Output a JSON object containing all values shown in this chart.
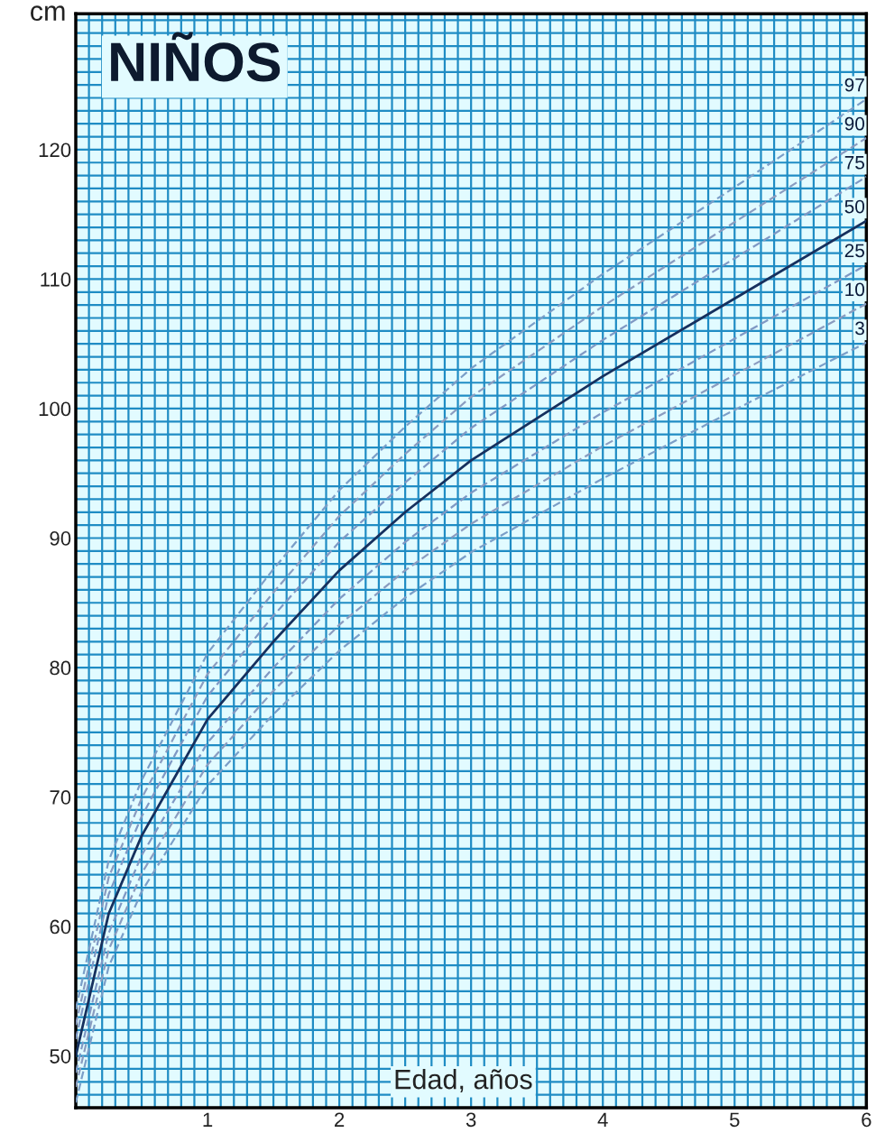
{
  "chart_data": {
    "type": "line",
    "title": "NIÑOS",
    "xlabel": "Edad, años",
    "ylabel": "cm",
    "x": [
      0,
      0.25,
      0.5,
      0.75,
      1,
      1.5,
      2,
      2.5,
      3,
      4,
      5,
      6
    ],
    "series": [
      {
        "name": "97",
        "color": "#7a9ec8",
        "line_style": "dashed",
        "values": [
          53.6,
          65.1,
          71.3,
          76.2,
          81.1,
          87.6,
          93.7,
          98.6,
          103.1,
          110.4,
          117.1,
          123.9
        ]
      },
      {
        "name": "90",
        "color": "#8a9cc0",
        "line_style": "dashed",
        "values": [
          52.4,
          63.8,
          69.9,
          74.7,
          79.5,
          85.8,
          91.7,
          96.5,
          100.9,
          107.9,
          114.4,
          120.9
        ]
      },
      {
        "name": "75",
        "color": "#7f98c4",
        "line_style": "dashed",
        "values": [
          51.3,
          62.5,
          68.5,
          73.2,
          77.8,
          84,
          89.7,
          94.3,
          98.5,
          105.3,
          111.6,
          117.9
        ]
      },
      {
        "name": "50",
        "color": "#16305e",
        "line_style": "solid",
        "values": [
          50,
          61,
          67,
          71.5,
          76,
          82,
          87.5,
          92,
          96,
          102.5,
          108.5,
          114.5
        ]
      },
      {
        "name": "25",
        "color": "#7f98c4",
        "line_style": "dashed",
        "values": [
          48.7,
          59.5,
          65.5,
          69.8,
          74.2,
          80,
          85.3,
          89.7,
          93.5,
          99.7,
          105.4,
          111.1
        ]
      },
      {
        "name": "10",
        "color": "#8a9cc0",
        "line_style": "dashed",
        "values": [
          47.6,
          58.2,
          64.1,
          68.3,
          72.5,
          78.2,
          83.3,
          87.5,
          91.1,
          97.1,
          102.6,
          108.1
        ]
      },
      {
        "name": "3",
        "color": "#7a9ec8",
        "line_style": "dashed",
        "values": [
          46.4,
          56.9,
          62.7,
          66.8,
          70.9,
          76.4,
          81.3,
          85.4,
          88.9,
          94.6,
          99.9,
          105.1
        ]
      }
    ],
    "xlim": [
      0,
      6
    ],
    "ylim": [
      46,
      130.5
    ],
    "xticks": [
      {
        "value": 0,
        "label": null
      },
      {
        "value": 0.1,
        "label": null
      },
      {
        "value": 0.2,
        "label": null
      },
      {
        "value": 0.3,
        "label": null
      },
      {
        "value": 0.4,
        "label": null
      },
      {
        "value": 0.5,
        "label": null
      },
      {
        "value": 0.6,
        "label": null
      },
      {
        "value": 0.7,
        "label": null
      },
      {
        "value": 0.8,
        "label": null
      },
      {
        "value": 0.9,
        "label": null
      },
      1,
      {
        "value": 1.1,
        "label": null
      },
      {
        "value": 1.2,
        "label": null
      },
      {
        "value": 1.3,
        "label": null
      },
      {
        "value": 1.4,
        "label": null
      },
      {
        "value": 1.5,
        "label": null
      },
      {
        "value": 1.6,
        "label": null
      },
      {
        "value": 1.7,
        "label": null
      },
      {
        "value": 1.8,
        "label": null
      },
      {
        "value": 1.9,
        "label": null
      },
      2,
      {
        "value": 2.1,
        "label": null
      },
      {
        "value": 2.2,
        "label": null
      },
      {
        "value": 2.3,
        "label": null
      },
      {
        "value": 2.4,
        "label": null
      },
      {
        "value": 2.5,
        "label": null
      },
      {
        "value": 2.6,
        "label": null
      },
      {
        "value": 2.7,
        "label": null
      },
      {
        "value": 2.8,
        "label": null
      },
      {
        "value": 2.9,
        "label": null
      },
      3,
      {
        "value": 3.1,
        "label": null
      },
      {
        "value": 3.2,
        "label": null
      },
      {
        "value": 3.3,
        "label": null
      },
      {
        "value": 3.4,
        "label": null
      },
      {
        "value": 3.5,
        "label": null
      },
      {
        "value": 3.6,
        "label": null
      },
      {
        "value": 3.7,
        "label": null
      },
      {
        "value": 3.8,
        "label": null
      },
      {
        "value": 3.9,
        "label": null
      },
      4,
      {
        "value": 4.1,
        "label": null
      },
      {
        "value": 4.2,
        "label": null
      },
      {
        "value": 4.3,
        "label": null
      },
      {
        "value": 4.4,
        "label": null
      },
      {
        "value": 4.5,
        "label": null
      },
      {
        "value": 4.6,
        "label": null
      },
      {
        "value": 4.7,
        "label": null
      },
      {
        "value": 4.8,
        "label": null
      },
      {
        "value": 4.9,
        "label": null
      },
      5,
      {
        "value": 5.1,
        "label": null
      },
      {
        "value": 5.2,
        "label": null
      },
      {
        "value": 5.3,
        "label": null
      },
      {
        "value": 5.4,
        "label": null
      },
      {
        "value": 5.5,
        "label": null
      },
      {
        "value": 5.6,
        "label": null
      },
      {
        "value": 5.7,
        "label": null
      },
      {
        "value": 5.8,
        "label": null
      },
      {
        "value": 5.9,
        "label": null
      },
      6
    ],
    "yticks": [
      {
        "value": 47,
        "label": null
      },
      {
        "value": 48,
        "label": null
      },
      {
        "value": 49,
        "label": null
      },
      50,
      {
        "value": 51,
        "label": null
      },
      {
        "value": 52,
        "label": null
      },
      {
        "value": 53,
        "label": null
      },
      {
        "value": 54,
        "label": null
      },
      {
        "value": 55,
        "label": null
      },
      {
        "value": 56,
        "label": null
      },
      {
        "value": 57,
        "label": null
      },
      {
        "value": 58,
        "label": null
      },
      {
        "value": 59,
        "label": null
      },
      60,
      {
        "value": 61,
        "label": null
      },
      {
        "value": 62,
        "label": null
      },
      {
        "value": 63,
        "label": null
      },
      {
        "value": 64,
        "label": null
      },
      {
        "value": 65,
        "label": null
      },
      {
        "value": 66,
        "label": null
      },
      {
        "value": 67,
        "label": null
      },
      {
        "value": 68,
        "label": null
      },
      {
        "value": 69,
        "label": null
      },
      70,
      {
        "value": 71,
        "label": null
      },
      {
        "value": 72,
        "label": null
      },
      {
        "value": 73,
        "label": null
      },
      {
        "value": 74,
        "label": null
      },
      {
        "value": 75,
        "label": null
      },
      {
        "value": 76,
        "label": null
      },
      {
        "value": 77,
        "label": null
      },
      {
        "value": 78,
        "label": null
      },
      {
        "value": 79,
        "label": null
      },
      80,
      {
        "value": 81,
        "label": null
      },
      {
        "value": 82,
        "label": null
      },
      {
        "value": 83,
        "label": null
      },
      {
        "value": 84,
        "label": null
      },
      {
        "value": 85,
        "label": null
      },
      {
        "value": 86,
        "label": null
      },
      {
        "value": 87,
        "label": null
      },
      {
        "value": 88,
        "label": null
      },
      {
        "value": 89,
        "label": null
      },
      90,
      {
        "value": 91,
        "label": null
      },
      {
        "value": 92,
        "label": null
      },
      {
        "value": 93,
        "label": null
      },
      {
        "value": 94,
        "label": null
      },
      {
        "value": 95,
        "label": null
      },
      {
        "value": 96,
        "label": null
      },
      {
        "value": 97,
        "label": null
      },
      {
        "value": 98,
        "label": null
      },
      {
        "value": 99,
        "label": null
      },
      100,
      {
        "value": 101,
        "label": null
      },
      {
        "value": 102,
        "label": null
      },
      {
        "value": 103,
        "label": null
      },
      {
        "value": 104,
        "label": null
      },
      {
        "value": 105,
        "label": null
      },
      {
        "value": 106,
        "label": null
      },
      {
        "value": 107,
        "label": null
      },
      {
        "value": 108,
        "label": null
      },
      {
        "value": 109,
        "label": null
      },
      110,
      {
        "value": 111,
        "label": null
      },
      {
        "value": 112,
        "label": null
      },
      {
        "value": 113,
        "label": null
      },
      {
        "value": 114,
        "label": null
      },
      {
        "value": 115,
        "label": null
      },
      {
        "value": 116,
        "label": null
      },
      {
        "value": 117,
        "label": null
      },
      {
        "value": 118,
        "label": null
      },
      {
        "value": 119,
        "label": null
      },
      120,
      {
        "value": 121,
        "label": null
      },
      {
        "value": 122,
        "label": null
      },
      {
        "value": 123,
        "label": null
      },
      {
        "value": 124,
        "label": null
      },
      {
        "value": 125,
        "label": null
      },
      {
        "value": 126,
        "label": null
      },
      {
        "value": 127,
        "label": null
      },
      {
        "value": 128,
        "label": null
      },
      {
        "value": 129,
        "label": null
      },
      {
        "value": 130,
        "label": null
      }
    ],
    "grid": true,
    "legend": false,
    "marker": "none"
  }
}
